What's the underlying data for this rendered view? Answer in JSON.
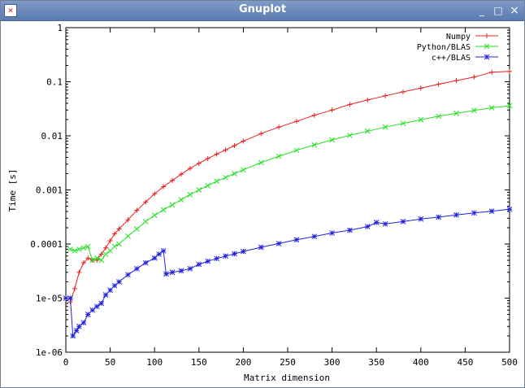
{
  "window": {
    "title": "Gnuplot",
    "app_icon": "gnuplot-icon",
    "controls": {
      "minimize": "_",
      "maximize": "□",
      "close": "×"
    }
  },
  "chart_data": {
    "type": "line",
    "xlabel": "Matrix dimension",
    "ylabel": "Time [s]",
    "xlim": [
      0,
      500
    ],
    "ylim": [
      1e-06,
      1
    ],
    "yscale": "log",
    "x_ticks": [
      0,
      50,
      100,
      150,
      200,
      250,
      300,
      350,
      400,
      450,
      500
    ],
    "y_ticks": [
      {
        "value": 1e-06,
        "label": "1e-06"
      },
      {
        "value": 1e-05,
        "label": "1e-05"
      },
      {
        "value": 0.0001,
        "label": "0.0001"
      },
      {
        "value": 0.001,
        "label": "0.001"
      },
      {
        "value": 0.01,
        "label": "0.01"
      },
      {
        "value": 0.1,
        "label": "0.1"
      },
      {
        "value": 1,
        "label": "1"
      }
    ],
    "legend_position": "top-right",
    "series": [
      {
        "name": "Numpy",
        "color": "#e82020",
        "marker": "plus",
        "points": [
          [
            5,
            8.5e-06
          ],
          [
            10,
            1.5e-05
          ],
          [
            15,
            3e-05
          ],
          [
            20,
            4.5e-05
          ],
          [
            25,
            5.5e-05
          ],
          [
            30,
            5e-05
          ],
          [
            35,
            5e-05
          ],
          [
            40,
            6.5e-05
          ],
          [
            45,
            8.5e-05
          ],
          [
            50,
            0.000115
          ],
          [
            55,
            0.000155
          ],
          [
            60,
            0.00019
          ],
          [
            70,
            0.00028
          ],
          [
            80,
            0.00042
          ],
          [
            90,
            0.0006
          ],
          [
            100,
            0.00085
          ],
          [
            110,
            0.00115
          ],
          [
            120,
            0.0015
          ],
          [
            130,
            0.00195
          ],
          [
            140,
            0.0025
          ],
          [
            150,
            0.0031
          ],
          [
            160,
            0.0038
          ],
          [
            170,
            0.0046
          ],
          [
            180,
            0.0055
          ],
          [
            190,
            0.0066
          ],
          [
            200,
            0.008
          ],
          [
            220,
            0.011
          ],
          [
            240,
            0.0145
          ],
          [
            260,
            0.0185
          ],
          [
            280,
            0.024
          ],
          [
            300,
            0.03
          ],
          [
            320,
            0.038
          ],
          [
            340,
            0.046
          ],
          [
            360,
            0.055
          ],
          [
            380,
            0.065
          ],
          [
            400,
            0.076
          ],
          [
            420,
            0.09
          ],
          [
            440,
            0.105
          ],
          [
            460,
            0.122
          ],
          [
            480,
            0.15
          ],
          [
            500,
            0.155
          ]
        ]
      },
      {
        "name": "Python/BLAS",
        "color": "#22e022",
        "marker": "cross",
        "points": [
          [
            5,
            8e-05
          ],
          [
            10,
            7.5e-05
          ],
          [
            15,
            8e-05
          ],
          [
            20,
            8.5e-05
          ],
          [
            25,
            9e-05
          ],
          [
            30,
            5e-05
          ],
          [
            35,
            5.5e-05
          ],
          [
            40,
            5e-05
          ],
          [
            45,
            6.5e-05
          ],
          [
            50,
            7.5e-05
          ],
          [
            55,
            9e-05
          ],
          [
            60,
            0.0001
          ],
          [
            70,
            0.00014
          ],
          [
            80,
            0.00019
          ],
          [
            90,
            0.00026
          ],
          [
            100,
            0.00034
          ],
          [
            110,
            0.00043
          ],
          [
            120,
            0.00053
          ],
          [
            130,
            0.00066
          ],
          [
            140,
            0.00082
          ],
          [
            150,
            0.001
          ],
          [
            160,
            0.0012
          ],
          [
            170,
            0.00145
          ],
          [
            180,
            0.0017
          ],
          [
            190,
            0.002
          ],
          [
            200,
            0.00235
          ],
          [
            220,
            0.0032
          ],
          [
            240,
            0.0042
          ],
          [
            260,
            0.0054
          ],
          [
            280,
            0.0068
          ],
          [
            300,
            0.0084
          ],
          [
            320,
            0.0102
          ],
          [
            340,
            0.0122
          ],
          [
            360,
            0.0145
          ],
          [
            380,
            0.017
          ],
          [
            400,
            0.0198
          ],
          [
            420,
            0.023
          ],
          [
            440,
            0.026
          ],
          [
            460,
            0.0295
          ],
          [
            480,
            0.033
          ],
          [
            500,
            0.036
          ]
        ]
      },
      {
        "name": "c++/BLAS",
        "color": "#2020e0",
        "marker": "star",
        "points": [
          [
            0,
            1e-05
          ],
          [
            5,
            1e-05
          ],
          [
            8,
            2e-06
          ],
          [
            12,
            2.5e-06
          ],
          [
            15,
            3e-06
          ],
          [
            20,
            3.5e-06
          ],
          [
            25,
            5e-06
          ],
          [
            30,
            6e-06
          ],
          [
            35,
            7e-06
          ],
          [
            40,
            8e-06
          ],
          [
            45,
            1.15e-05
          ],
          [
            50,
            1.4e-05
          ],
          [
            55,
            1.7e-05
          ],
          [
            60,
            2e-05
          ],
          [
            70,
            2.7e-05
          ],
          [
            80,
            3.5e-05
          ],
          [
            90,
            4.5e-05
          ],
          [
            100,
            5.5e-05
          ],
          [
            105,
            6.5e-05
          ],
          [
            110,
            7.5e-05
          ],
          [
            113,
            2.8e-05
          ],
          [
            120,
            3e-05
          ],
          [
            130,
            3.2e-05
          ],
          [
            140,
            3.5e-05
          ],
          [
            150,
            4.2e-05
          ],
          [
            160,
            4.8e-05
          ],
          [
            170,
            5.4e-05
          ],
          [
            180,
            6e-05
          ],
          [
            190,
            6.6e-05
          ],
          [
            200,
            7.3e-05
          ],
          [
            220,
            8.7e-05
          ],
          [
            240,
            0.000102
          ],
          [
            260,
            0.00012
          ],
          [
            280,
            0.000138
          ],
          [
            300,
            0.00016
          ],
          [
            320,
            0.00018
          ],
          [
            340,
            0.00021
          ],
          [
            350,
            0.00025
          ],
          [
            360,
            0.000235
          ],
          [
            380,
            0.00026
          ],
          [
            400,
            0.00029
          ],
          [
            420,
            0.000315
          ],
          [
            440,
            0.000345
          ],
          [
            460,
            0.000375
          ],
          [
            480,
            0.000405
          ],
          [
            500,
            0.00044
          ]
        ]
      }
    ]
  }
}
